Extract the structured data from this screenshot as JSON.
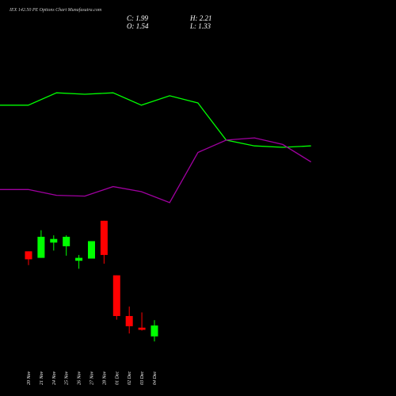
{
  "chart_data": {
    "type": "candlestick",
    "title": "IEX 142.50 PE Options Chart Munafasutra.com",
    "ohlc_labels": [
      "C: 1.99",
      "H: 2.21",
      "O: 1.54",
      "L: 1.33"
    ],
    "ylim": [
      -0.92,
      15.42
    ],
    "up_color": "#00ff00",
    "down_color": "#ff0000",
    "candles": {
      "dates": [
        "20 Nov",
        "21 Nov",
        "24 Nov",
        "25 Nov",
        "26 Nov",
        "27 Nov",
        "28 Nov",
        "01 Dec",
        "02 Dec",
        "03 Dec",
        "04 Dec"
      ],
      "open": [
        5.05,
        4.78,
        5.41,
        5.26,
        4.66,
        4.75,
        6.31,
        4.06,
        2.38,
        1.9,
        1.54
      ],
      "high": [
        5.05,
        5.92,
        5.71,
        5.71,
        4.9,
        5.47,
        6.31,
        4.06,
        2.77,
        2.53,
        2.21
      ],
      "low": [
        4.48,
        4.78,
        5.08,
        4.87,
        4.33,
        4.75,
        4.54,
        2.23,
        1.66,
        1.78,
        1.33
      ],
      "close": [
        4.72,
        5.65,
        5.56,
        5.65,
        4.78,
        5.47,
        4.9,
        2.38,
        1.96,
        1.81,
        1.99
      ]
    },
    "series": [
      {
        "color": "#00ff00",
        "values": [
          11.08,
          11.08,
          11.59,
          11.53,
          11.59,
          11.08,
          11.47,
          11.17,
          9.64,
          9.4,
          9.34,
          9.4
        ]
      },
      {
        "color": "#a000a0",
        "values": [
          7.6,
          7.6,
          7.36,
          7.33,
          7.72,
          7.51,
          7.06,
          9.13,
          9.64,
          9.73,
          9.46,
          8.74
        ]
      }
    ]
  }
}
